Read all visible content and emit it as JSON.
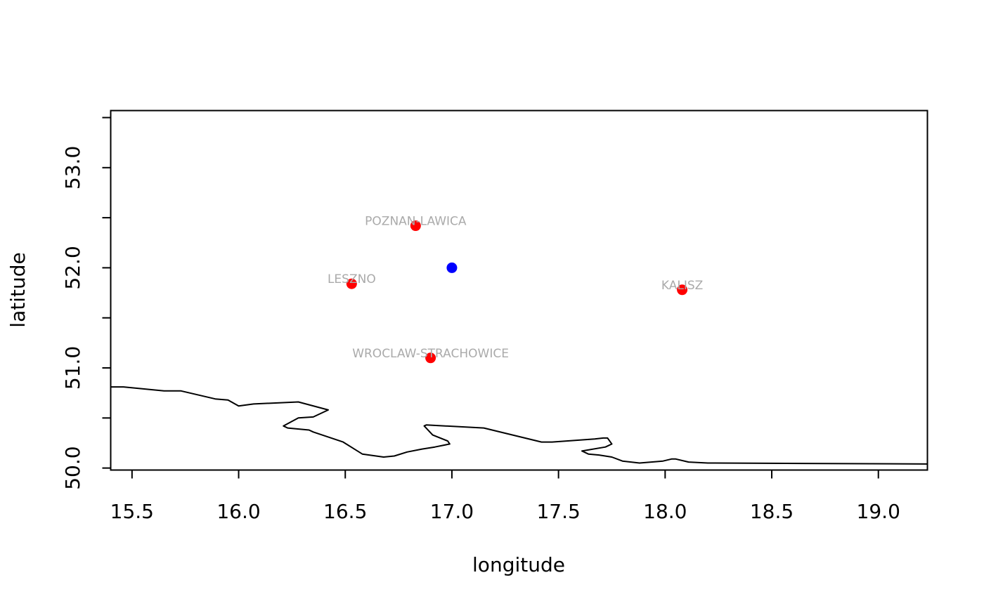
{
  "chart_data": {
    "type": "scatter",
    "title": "",
    "xlabel": "longitude",
    "ylabel": "latitude",
    "xlim": [
      15.4,
      19.23
    ],
    "ylim": [
      49.98,
      53.57
    ],
    "xticks": [
      "15.5",
      "16.0",
      "16.5",
      "17.0",
      "17.5",
      "18.0",
      "18.5",
      "19.0"
    ],
    "yticks": [
      "50.0",
      "51.0",
      "52.0",
      "53.0"
    ],
    "y_minor_ticks": [
      50.5,
      51.5,
      52.5,
      53.5
    ],
    "grid": false,
    "colors": {
      "stations": "#ff0000",
      "target": "#0000ff",
      "labels": "#aaaaaa",
      "border": "#000000"
    },
    "target_point": {
      "lon": 17.0,
      "lat": 52.0
    },
    "stations": [
      {
        "name": "POZNAN-LAWICA",
        "lon": 16.83,
        "lat": 52.42
      },
      {
        "name": "LESZNO",
        "lon": 16.53,
        "lat": 51.84
      },
      {
        "name": "KALISZ",
        "lon": 18.08,
        "lat": 51.78
      },
      {
        "name": "WROCLAW-STRACHOWICE",
        "lon": 16.9,
        "lat": 51.1
      }
    ],
    "border_line": [
      [
        15.4,
        50.81
      ],
      [
        15.46,
        50.81
      ],
      [
        15.65,
        50.77
      ],
      [
        15.73,
        50.77
      ],
      [
        15.89,
        50.69
      ],
      [
        15.95,
        50.68
      ],
      [
        16.0,
        50.62
      ],
      [
        16.07,
        50.64
      ],
      [
        16.28,
        50.66
      ],
      [
        16.42,
        50.58
      ],
      [
        16.35,
        50.51
      ],
      [
        16.28,
        50.5
      ],
      [
        16.21,
        50.42
      ],
      [
        16.23,
        50.4
      ],
      [
        16.33,
        50.38
      ],
      [
        16.35,
        50.36
      ],
      [
        16.49,
        50.26
      ],
      [
        16.58,
        50.14
      ],
      [
        16.68,
        50.11
      ],
      [
        16.73,
        50.12
      ],
      [
        16.79,
        50.16
      ],
      [
        16.86,
        50.19
      ],
      [
        16.92,
        50.21
      ],
      [
        16.99,
        50.24
      ],
      [
        16.98,
        50.27
      ],
      [
        16.91,
        50.33
      ],
      [
        16.87,
        50.42
      ],
      [
        16.88,
        50.43
      ],
      [
        17.15,
        50.4
      ],
      [
        17.42,
        50.26
      ],
      [
        17.47,
        50.26
      ],
      [
        17.67,
        50.29
      ],
      [
        17.71,
        50.3
      ],
      [
        17.73,
        50.3
      ],
      [
        17.75,
        50.24
      ],
      [
        17.72,
        50.21
      ],
      [
        17.61,
        50.17
      ],
      [
        17.64,
        50.14
      ],
      [
        17.69,
        50.13
      ],
      [
        17.75,
        50.11
      ],
      [
        17.8,
        50.07
      ],
      [
        17.88,
        50.05
      ],
      [
        17.99,
        50.07
      ],
      [
        18.03,
        50.09
      ],
      [
        18.05,
        50.09
      ],
      [
        18.11,
        50.06
      ],
      [
        18.2,
        50.05
      ],
      [
        19.23,
        50.04
      ]
    ]
  }
}
